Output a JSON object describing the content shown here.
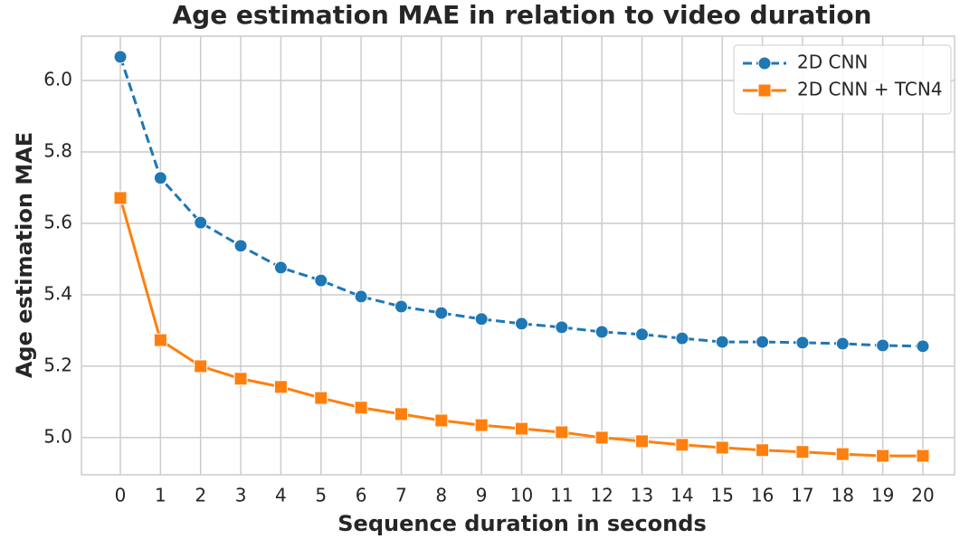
{
  "chart_data": {
    "type": "line",
    "title": "Age estimation MAE in relation to video duration",
    "xlabel": "Sequence duration in seconds",
    "ylabel": "Age estimation MAE",
    "x": [
      0,
      1,
      2,
      3,
      4,
      5,
      6,
      7,
      8,
      9,
      10,
      11,
      12,
      13,
      14,
      15,
      16,
      17,
      18,
      19,
      20
    ],
    "series": [
      {
        "name": "2D CNN",
        "color": "#1f77b4",
        "linestyle": "dashed",
        "marker": "circle",
        "values": [
          6.066,
          5.727,
          5.602,
          5.537,
          5.476,
          5.44,
          5.395,
          5.367,
          5.349,
          5.332,
          5.319,
          5.309,
          5.296,
          5.289,
          5.278,
          5.268,
          5.268,
          5.266,
          5.263,
          5.258,
          5.256
        ]
      },
      {
        "name": "2D CNN + TCN4",
        "color": "#ff7f0e",
        "linestyle": "solid",
        "marker": "square",
        "values": [
          5.671,
          5.273,
          5.2,
          5.165,
          5.142,
          5.111,
          5.084,
          5.066,
          5.048,
          5.035,
          5.025,
          5.015,
          5.0,
          4.99,
          4.98,
          4.972,
          4.965,
          4.96,
          4.954,
          4.949,
          4.949
        ]
      }
    ],
    "xlim": [
      -0.97,
      20.79
    ],
    "ylim": [
      4.896,
      6.124
    ],
    "xticks": [
      0,
      1,
      2,
      3,
      4,
      5,
      6,
      7,
      8,
      9,
      10,
      11,
      12,
      13,
      14,
      15,
      16,
      17,
      18,
      19,
      20
    ],
    "yticks": [
      {
        "value": 5,
        "label": "5.0"
      },
      5.2,
      5.4,
      5.6,
      5.8,
      {
        "value": 6,
        "label": "6.0"
      }
    ],
    "grid": true,
    "legend": "upper right"
  }
}
